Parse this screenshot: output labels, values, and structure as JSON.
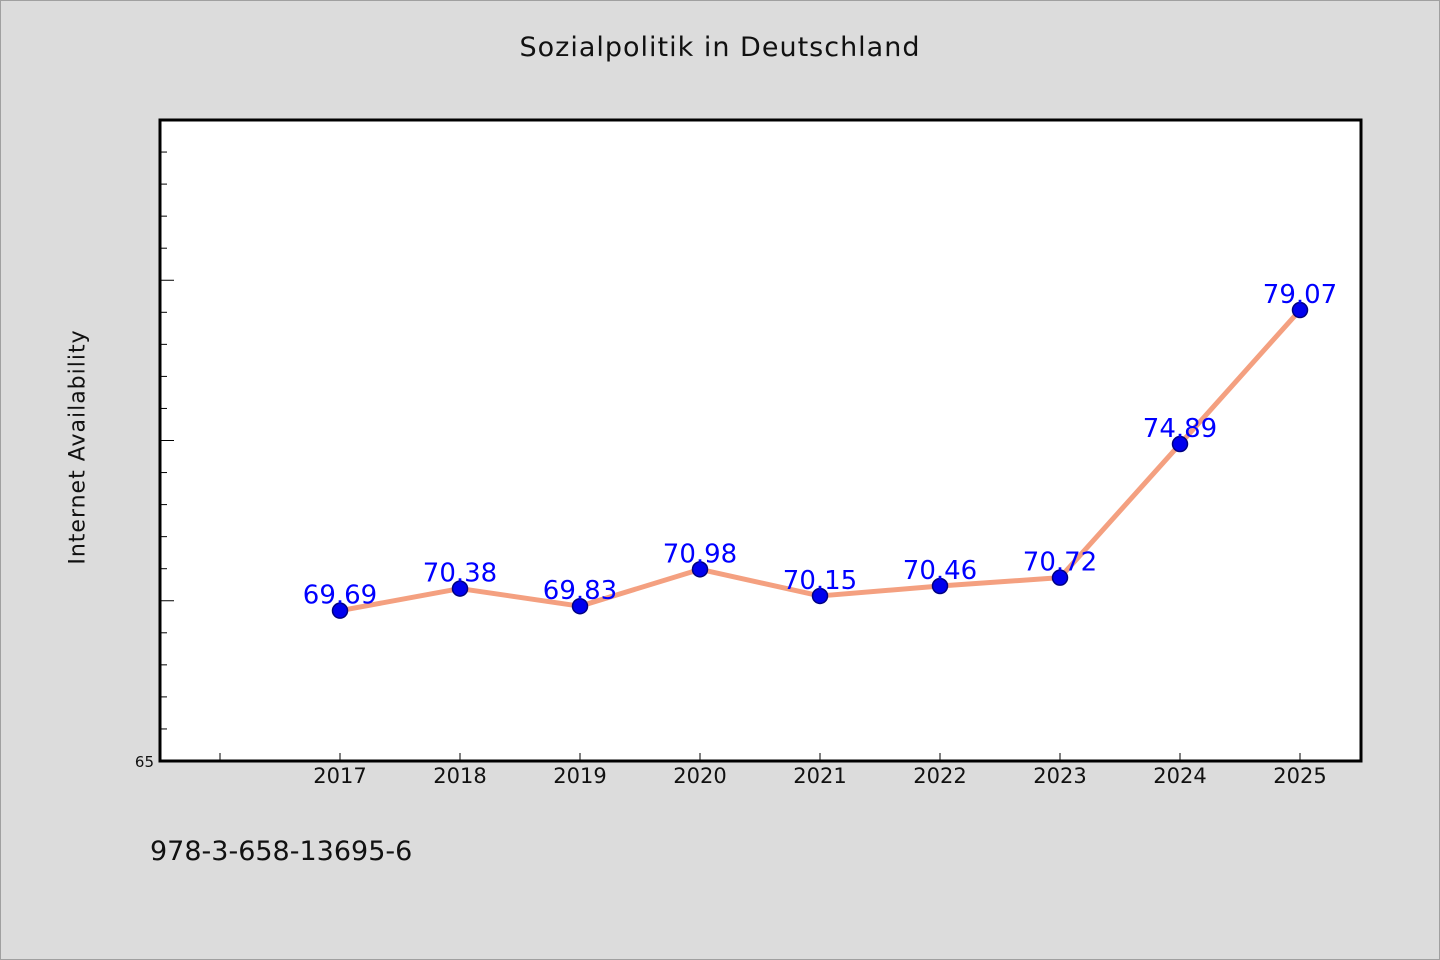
{
  "chart_data": {
    "type": "line",
    "title": "Sozialpolitik in Deutschland",
    "xlabel": "",
    "ylabel": "Internet Availability",
    "categories": [
      "2017",
      "2018",
      "2019",
      "2020",
      "2021",
      "2022",
      "2023",
      "2024",
      "2025"
    ],
    "values": [
      69.69,
      70.38,
      69.83,
      70.98,
      70.15,
      70.46,
      70.72,
      74.89,
      79.07
    ],
    "data_labels": [
      "69.69",
      "70.38",
      "69.83",
      "70.98",
      "70.15",
      "70.46",
      "70.72",
      "74.89",
      "79.07"
    ],
    "y_tick_labels": [
      {
        "value": 65,
        "label": "65"
      }
    ],
    "ylim": [
      65,
      85
    ],
    "grid": false,
    "legend": "none",
    "colors": {
      "line": "#f4a080",
      "marker_fill": "#0000ee",
      "marker_edge": "#000080",
      "data_label": "#0000ff",
      "plot_background": "#ffffff",
      "page_background": "#dcdcdc"
    }
  },
  "footer": {
    "isbn": "978-3-658-13695-6"
  }
}
